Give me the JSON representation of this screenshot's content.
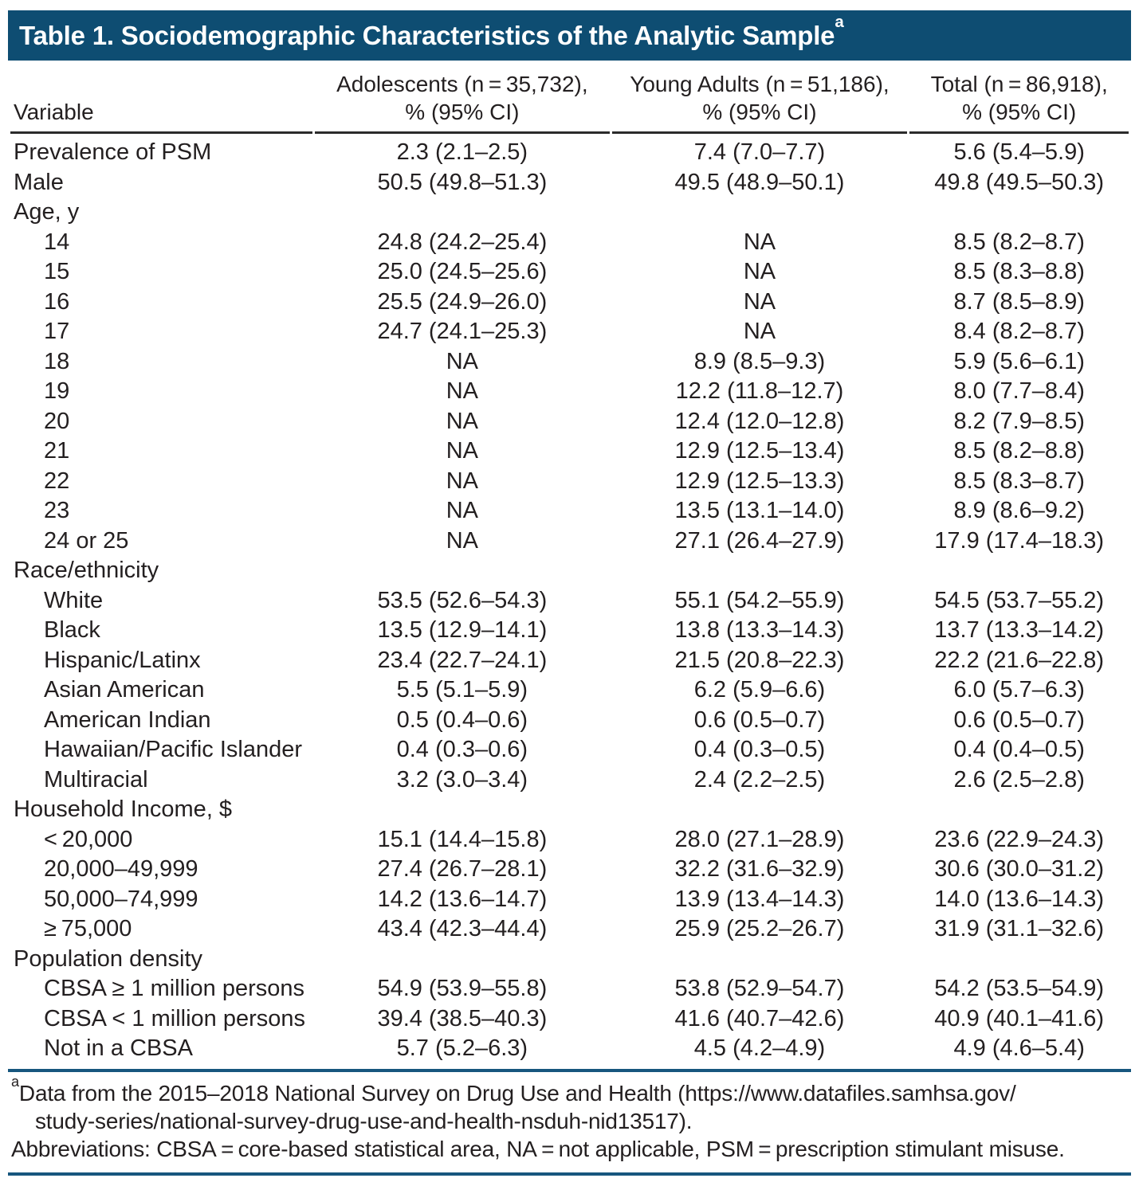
{
  "table": {
    "title": "Table 1. Sociodemographic Characteristics of the Analytic Sample",
    "title_superscript": "a",
    "colors": {
      "header_bg": "#0e4d72",
      "rule_blue": "#17567e",
      "text": "#231f20"
    },
    "columns": [
      {
        "line1": "Variable",
        "line2": ""
      },
      {
        "line1": "Adolescents (n = 35,732),",
        "line2": "% (95% CI)"
      },
      {
        "line1": "Young Adults (n = 51,186),",
        "line2": "% (95% CI)"
      },
      {
        "line1": "Total (n = 86,918),",
        "line2": "% (95% CI)"
      }
    ],
    "rows": [
      {
        "label": "Prevalence of PSM",
        "indent": false,
        "values": [
          "2.3 (2.1–2.5)",
          "7.4 (7.0–7.7)",
          "5.6 (5.4–5.9)"
        ]
      },
      {
        "label": "Male",
        "indent": false,
        "values": [
          "50.5 (49.8–51.3)",
          "49.5 (48.9–50.1)",
          "49.8 (49.5–50.3)"
        ]
      },
      {
        "label": "Age, y",
        "indent": false,
        "values": [
          "",
          "",
          ""
        ]
      },
      {
        "label": "14",
        "indent": true,
        "values": [
          "24.8 (24.2–25.4)",
          "NA",
          "8.5 (8.2–8.7)"
        ]
      },
      {
        "label": "15",
        "indent": true,
        "values": [
          "25.0 (24.5–25.6)",
          "NA",
          "8.5 (8.3–8.8)"
        ]
      },
      {
        "label": "16",
        "indent": true,
        "values": [
          "25.5 (24.9–26.0)",
          "NA",
          "8.7 (8.5–8.9)"
        ]
      },
      {
        "label": "17",
        "indent": true,
        "values": [
          "24.7 (24.1–25.3)",
          "NA",
          "8.4 (8.2–8.7)"
        ]
      },
      {
        "label": "18",
        "indent": true,
        "values": [
          "NA",
          "8.9 (8.5–9.3)",
          "5.9 (5.6–6.1)"
        ]
      },
      {
        "label": "19",
        "indent": true,
        "values": [
          "NA",
          "12.2 (11.8–12.7)",
          "8.0 (7.7–8.4)"
        ]
      },
      {
        "label": "20",
        "indent": true,
        "values": [
          "NA",
          "12.4 (12.0–12.8)",
          "8.2 (7.9–8.5)"
        ]
      },
      {
        "label": "21",
        "indent": true,
        "values": [
          "NA",
          "12.9 (12.5–13.4)",
          "8.5 (8.2–8.8)"
        ]
      },
      {
        "label": "22",
        "indent": true,
        "values": [
          "NA",
          "12.9 (12.5–13.3)",
          "8.5 (8.3–8.7)"
        ]
      },
      {
        "label": "23",
        "indent": true,
        "values": [
          "NA",
          "13.5 (13.1–14.0)",
          "8.9 (8.6–9.2)"
        ]
      },
      {
        "label": "24 or 25",
        "indent": true,
        "values": [
          "NA",
          "27.1 (26.4–27.9)",
          "17.9 (17.4–18.3)"
        ]
      },
      {
        "label": "Race/ethnicity",
        "indent": false,
        "values": [
          "",
          "",
          ""
        ]
      },
      {
        "label": "White",
        "indent": true,
        "values": [
          "53.5 (52.6–54.3)",
          "55.1 (54.2–55.9)",
          "54.5 (53.7–55.2)"
        ]
      },
      {
        "label": "Black",
        "indent": true,
        "values": [
          "13.5 (12.9–14.1)",
          "13.8 (13.3–14.3)",
          "13.7 (13.3–14.2)"
        ]
      },
      {
        "label": "Hispanic/Latinx",
        "indent": true,
        "values": [
          "23.4 (22.7–24.1)",
          "21.5 (20.8–22.3)",
          "22.2 (21.6–22.8)"
        ]
      },
      {
        "label": "Asian American",
        "indent": true,
        "values": [
          "5.5 (5.1–5.9)",
          "6.2 (5.9–6.6)",
          "6.0 (5.7–6.3)"
        ]
      },
      {
        "label": "American Indian",
        "indent": true,
        "values": [
          "0.5 (0.4–0.6)",
          "0.6 (0.5–0.7)",
          "0.6 (0.5–0.7)"
        ]
      },
      {
        "label": "Hawaiian/Pacific Islander",
        "indent": true,
        "values": [
          "0.4 (0.3–0.6)",
          "0.4 (0.3–0.5)",
          "0.4 (0.4–0.5)"
        ]
      },
      {
        "label": "Multiracial",
        "indent": true,
        "values": [
          "3.2 (3.0–3.4)",
          "2.4 (2.2–2.5)",
          "2.6 (2.5–2.8)"
        ]
      },
      {
        "label": "Household Income, $",
        "indent": false,
        "values": [
          "",
          "",
          ""
        ]
      },
      {
        "label": "< 20,000",
        "indent": true,
        "values": [
          "15.1 (14.4–15.8)",
          "28.0 (27.1–28.9)",
          "23.6 (22.9–24.3)"
        ]
      },
      {
        "label": "20,000–49,999",
        "indent": true,
        "values": [
          "27.4 (26.7–28.1)",
          "32.2 (31.6–32.9)",
          "30.6 (30.0–31.2)"
        ]
      },
      {
        "label": "50,000–74,999",
        "indent": true,
        "values": [
          "14.2 (13.6–14.7)",
          "13.9 (13.4–14.3)",
          "14.0 (13.6–14.3)"
        ]
      },
      {
        "label": "≥ 75,000",
        "indent": true,
        "values": [
          "43.4 (42.3–44.4)",
          "25.9 (25.2–26.7)",
          "31.9 (31.1–32.6)"
        ]
      },
      {
        "label": "Population density",
        "indent": false,
        "values": [
          "",
          "",
          ""
        ]
      },
      {
        "label": "CBSA ≥ 1 million persons",
        "indent": true,
        "values": [
          "54.9 (53.9–55.8)",
          "53.8 (52.9–54.7)",
          "54.2 (53.5–54.9)"
        ]
      },
      {
        "label": "CBSA < 1 million persons",
        "indent": true,
        "values": [
          "39.4 (38.5–40.3)",
          "41.6 (40.7–42.6)",
          "40.9 (40.1–41.6)"
        ]
      },
      {
        "label": "Not in a CBSA",
        "indent": true,
        "values": [
          "5.7 (5.2–6.3)",
          "4.5 (4.2–4.9)",
          "4.9 (4.6–5.4)"
        ]
      }
    ],
    "footnotes": {
      "source_marker": "a",
      "source_line1": "Data from the 2015–2018 National Survey on Drug Use and Health (https://www.datafiles.samhsa.gov/",
      "source_line2": "study-series/national-survey-drug-use-and-health-nsduh-nid13517).",
      "abbreviations": "Abbreviations: CBSA = core-based statistical area, NA = not applicable, PSM = prescription stimulant misuse."
    }
  }
}
